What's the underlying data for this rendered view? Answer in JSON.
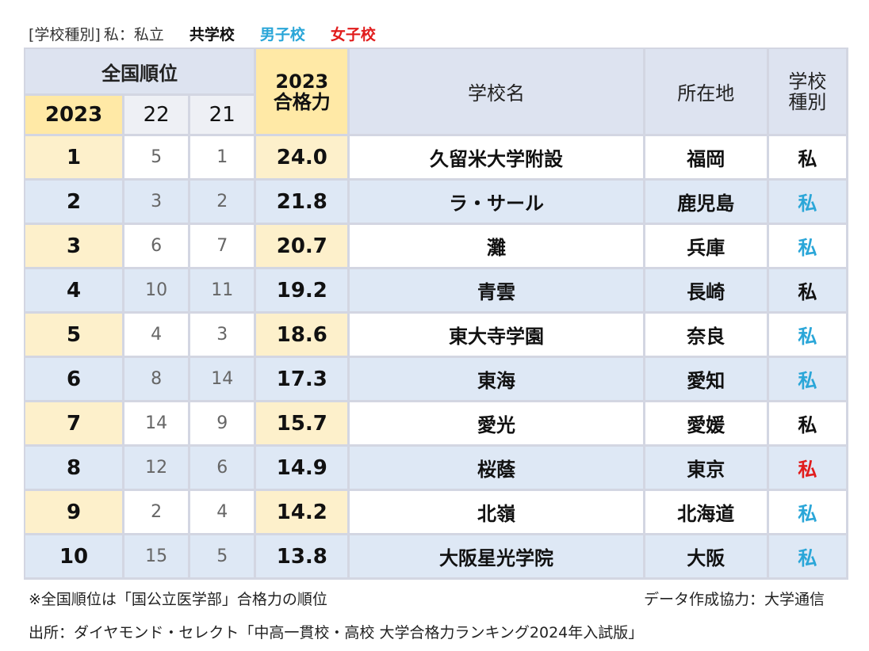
{
  "legend": {
    "label": "[学校種別]",
    "definition": "私：私立",
    "items": [
      {
        "label": "共学校",
        "color": "#111111"
      },
      {
        "label": "男子校",
        "color": "#2aa6d8"
      },
      {
        "label": "女子校",
        "color": "#e11c1c"
      }
    ]
  },
  "table": {
    "headers": {
      "national_rank": "全国順位",
      "year_current": "2023",
      "year_prev1": "22",
      "year_prev2": "21",
      "power_year": "2023",
      "power_label": "合格力",
      "school_name": "学校名",
      "location": "所在地",
      "school_type_line1": "学校",
      "school_type_line2": "種別"
    },
    "rows": [
      {
        "rank": "1",
        "r22": "5",
        "r21": "1",
        "power": "24.0",
        "name": "久留米大学附設",
        "location": "福岡",
        "type": "私",
        "gender": "co"
      },
      {
        "rank": "2",
        "r22": "3",
        "r21": "2",
        "power": "21.8",
        "name": "ラ・サール",
        "location": "鹿児島",
        "type": "私",
        "gender": "boys"
      },
      {
        "rank": "3",
        "r22": "6",
        "r21": "7",
        "power": "20.7",
        "name": "灘",
        "location": "兵庫",
        "type": "私",
        "gender": "boys"
      },
      {
        "rank": "4",
        "r22": "10",
        "r21": "11",
        "power": "19.2",
        "name": "青雲",
        "location": "長崎",
        "type": "私",
        "gender": "co"
      },
      {
        "rank": "5",
        "r22": "4",
        "r21": "3",
        "power": "18.6",
        "name": "東大寺学園",
        "location": "奈良",
        "type": "私",
        "gender": "boys"
      },
      {
        "rank": "6",
        "r22": "8",
        "r21": "14",
        "power": "17.3",
        "name": "東海",
        "location": "愛知",
        "type": "私",
        "gender": "boys"
      },
      {
        "rank": "7",
        "r22": "14",
        "r21": "9",
        "power": "15.7",
        "name": "愛光",
        "location": "愛媛",
        "type": "私",
        "gender": "co"
      },
      {
        "rank": "8",
        "r22": "12",
        "r21": "6",
        "power": "14.9",
        "name": "桜蔭",
        "location": "東京",
        "type": "私",
        "gender": "girls"
      },
      {
        "rank": "9",
        "r22": "2",
        "r21": "4",
        "power": "14.2",
        "name": "北嶺",
        "location": "北海道",
        "type": "私",
        "gender": "boys"
      },
      {
        "rank": "10",
        "r22": "15",
        "r21": "5",
        "power": "13.8",
        "name": "大阪星光学院",
        "location": "大阪",
        "type": "私",
        "gender": "boys"
      }
    ]
  },
  "footer": {
    "note": "※全国順位は「国公立医学部」合格力の順位",
    "credit": "データ作成協力：大学通信",
    "source": "出所：ダイヤモンド・セレクト「中高一貫校・高校 大学合格力ランキング2024年入試版」"
  }
}
